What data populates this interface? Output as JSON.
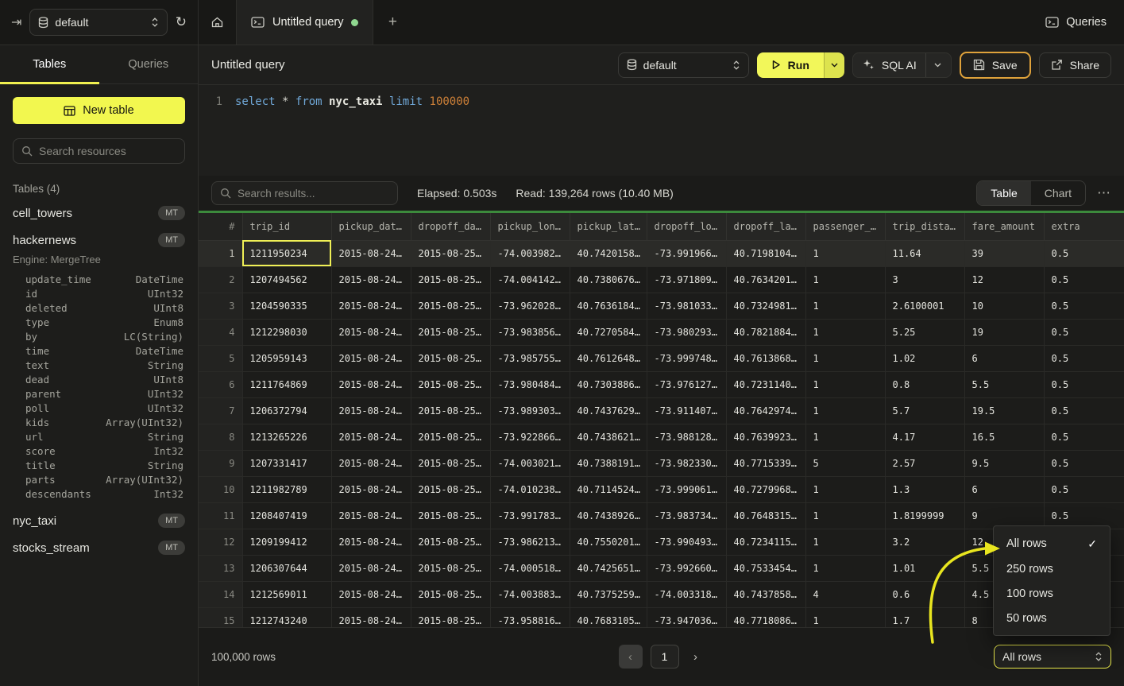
{
  "colors": {
    "accent_yellow": "#f2f75a",
    "annotation_arrow_yellow": "#e8e51f",
    "annotation_save_orange": "#dfa23b",
    "selected_cell_yellow": "#f0f056",
    "progress_green": "#3c8a3c",
    "tab_dot_green": "#90d890"
  },
  "topbar": {
    "collapse_icon": "⇥",
    "database": "default",
    "refresh_icon": "↻",
    "tab_title": "Untitled query",
    "new_tab_icon": "+",
    "queries_button": "Queries"
  },
  "sidebar": {
    "tabs": [
      {
        "label": "Tables",
        "active": true
      },
      {
        "label": "Queries",
        "active": false
      }
    ],
    "new_table_button": "New table",
    "search_placeholder": "Search resources",
    "section_label": "Tables (4)",
    "tables": [
      {
        "name": "cell_towers",
        "badge": "MT"
      },
      {
        "name": "hackernews",
        "badge": "MT",
        "engine": "Engine: MergeTree",
        "columns": [
          [
            "update_time",
            "DateTime"
          ],
          [
            "id",
            "UInt32"
          ],
          [
            "deleted",
            "UInt8"
          ],
          [
            "type",
            "Enum8"
          ],
          [
            "by",
            "LC(String)"
          ],
          [
            "time",
            "DateTime"
          ],
          [
            "text",
            "String"
          ],
          [
            "dead",
            "UInt8"
          ],
          [
            "parent",
            "UInt32"
          ],
          [
            "poll",
            "UInt32"
          ],
          [
            "kids",
            "Array(UInt32)"
          ],
          [
            "url",
            "String"
          ],
          [
            "score",
            "Int32"
          ],
          [
            "title",
            "String"
          ],
          [
            "parts",
            "Array(UInt32)"
          ],
          [
            "descendants",
            "Int32"
          ]
        ]
      },
      {
        "name": "nyc_taxi",
        "badge": "MT"
      },
      {
        "name": "stocks_stream",
        "badge": "MT"
      }
    ]
  },
  "query_header": {
    "title": "Untitled query",
    "database": "default",
    "run_label": "Run",
    "sql_ai_label": "SQL AI",
    "save_label": "Save",
    "share_label": "Share"
  },
  "editor": {
    "line_number": "1",
    "sql_text": "select * from nyc_taxi limit 100000",
    "sql_tokens": [
      {
        "text": "select",
        "type": "kw"
      },
      {
        "text": " ",
        "type": "plain"
      },
      {
        "text": "*",
        "type": "op"
      },
      {
        "text": " ",
        "type": "plain"
      },
      {
        "text": "from",
        "type": "kw"
      },
      {
        "text": " ",
        "type": "plain"
      },
      {
        "text": "nyc_taxi",
        "type": "ident"
      },
      {
        "text": " ",
        "type": "plain"
      },
      {
        "text": "limit",
        "type": "kw"
      },
      {
        "text": " ",
        "type": "plain"
      },
      {
        "text": "100000",
        "type": "num"
      }
    ]
  },
  "results_toolbar": {
    "search_placeholder": "Search results...",
    "elapsed": "Elapsed: 0.503s",
    "read": "Read: 139,264 rows (10.40 MB)",
    "view_toggle": [
      {
        "label": "Table",
        "active": true
      },
      {
        "label": "Chart",
        "active": false
      }
    ],
    "more_icon": "⋯"
  },
  "results_table": {
    "headers": [
      "#",
      "trip_id",
      "pickup_dat…",
      "dropoff_da…",
      "pickup_lon…",
      "pickup_lat…",
      "dropoff_lo…",
      "dropoff_la…",
      "passenger_…",
      "trip_dista…",
      "fare_amount",
      "extra"
    ],
    "rows": [
      [
        "1",
        "1211950234",
        "2015-08-24…",
        "2015-08-25…",
        "-74.003982…",
        "40.7420158…",
        "-73.991966…",
        "40.7198104…",
        "1",
        "11.64",
        "39",
        "0.5"
      ],
      [
        "2",
        "1207494562",
        "2015-08-24…",
        "2015-08-25…",
        "-74.004142…",
        "40.7380676…",
        "-73.971809…",
        "40.7634201…",
        "1",
        "3",
        "12",
        "0.5"
      ],
      [
        "3",
        "1204590335",
        "2015-08-24…",
        "2015-08-25…",
        "-73.962028…",
        "40.7636184…",
        "-73.981033…",
        "40.7324981…",
        "1",
        "2.6100001",
        "10",
        "0.5"
      ],
      [
        "4",
        "1212298030",
        "2015-08-24…",
        "2015-08-25…",
        "-73.983856…",
        "40.7270584…",
        "-73.980293…",
        "40.7821884…",
        "1",
        "5.25",
        "19",
        "0.5"
      ],
      [
        "5",
        "1205959143",
        "2015-08-24…",
        "2015-08-25…",
        "-73.985755…",
        "40.7612648…",
        "-73.999748…",
        "40.7613868…",
        "1",
        "1.02",
        "6",
        "0.5"
      ],
      [
        "6",
        "1211764869",
        "2015-08-24…",
        "2015-08-25…",
        "-73.980484…",
        "40.7303886…",
        "-73.976127…",
        "40.7231140…",
        "1",
        "0.8",
        "5.5",
        "0.5"
      ],
      [
        "7",
        "1206372794",
        "2015-08-24…",
        "2015-08-25…",
        "-73.989303…",
        "40.7437629…",
        "-73.911407…",
        "40.7642974…",
        "1",
        "5.7",
        "19.5",
        "0.5"
      ],
      [
        "8",
        "1213265226",
        "2015-08-24…",
        "2015-08-25…",
        "-73.922866…",
        "40.7438621…",
        "-73.988128…",
        "40.7639923…",
        "1",
        "4.17",
        "16.5",
        "0.5"
      ],
      [
        "9",
        "1207331417",
        "2015-08-24…",
        "2015-08-25…",
        "-74.003021…",
        "40.7388191…",
        "-73.982330…",
        "40.7715339…",
        "5",
        "2.57",
        "9.5",
        "0.5"
      ],
      [
        "10",
        "1211982789",
        "2015-08-24…",
        "2015-08-25…",
        "-74.010238…",
        "40.7114524…",
        "-73.999061…",
        "40.7279968…",
        "1",
        "1.3",
        "6",
        "0.5"
      ],
      [
        "11",
        "1208407419",
        "2015-08-24…",
        "2015-08-25…",
        "-73.991783…",
        "40.7438926…",
        "-73.983734…",
        "40.7648315…",
        "1",
        "1.8199999",
        "9",
        "0.5"
      ],
      [
        "12",
        "1209199412",
        "2015-08-24…",
        "2015-08-25…",
        "-73.986213…",
        "40.7550201…",
        "-73.990493…",
        "40.7234115…",
        "1",
        "3.2",
        "12",
        "0.5"
      ],
      [
        "13",
        "1206307644",
        "2015-08-24…",
        "2015-08-25…",
        "-74.000518…",
        "40.7425651…",
        "-73.992660…",
        "40.7533454…",
        "1",
        "1.01",
        "5.5",
        "0.5"
      ],
      [
        "14",
        "1212569011",
        "2015-08-24…",
        "2015-08-25…",
        "-74.003883…",
        "40.7375259…",
        "-74.003318…",
        "40.7437858…",
        "4",
        "0.6",
        "4.5",
        "0.5"
      ],
      [
        "15",
        "1212743240",
        "2015-08-24…",
        "2015-08-25…",
        "-73.958816…",
        "40.7683105…",
        "-73.947036…",
        "40.7718086…",
        "1",
        "1.7",
        "8",
        "0.5"
      ]
    ]
  },
  "footer": {
    "row_count": "100,000 rows",
    "prev_icon": "‹",
    "page": "1",
    "next_icon": "›",
    "page_size_selected": "All rows"
  },
  "page_size_menu": {
    "items": [
      {
        "label": "All rows",
        "checked": true
      },
      {
        "label": "250 rows",
        "checked": false
      },
      {
        "label": "100 rows",
        "checked": false
      },
      {
        "label": "50 rows",
        "checked": false
      }
    ],
    "check_icon": "✓"
  }
}
